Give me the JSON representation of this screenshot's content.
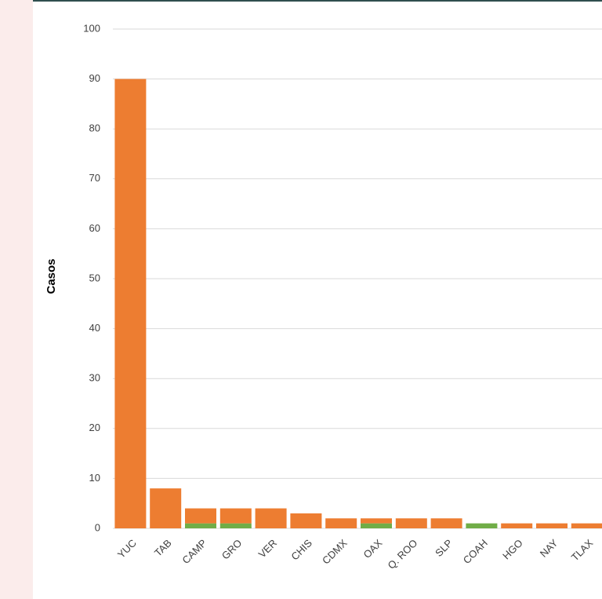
{
  "chart_data": {
    "type": "stacked_bar",
    "y_label": "Casos",
    "categories": [
      "YUC",
      "TAB",
      "CAMP",
      "GRO",
      "VER",
      "CHIS",
      "CDMX",
      "OAX",
      "Q. ROO",
      "SLP",
      "COAH",
      "HGO",
      "NAY",
      "TLAX"
    ],
    "series": [
      {
        "color": "#70ad47",
        "values": [
          0,
          0,
          1,
          1,
          0,
          0,
          0,
          1,
          0,
          0,
          1,
          0,
          0,
          0
        ]
      },
      {
        "color": "#ed7d31",
        "values": [
          90,
          8,
          3,
          3,
          4,
          3,
          2,
          1,
          2,
          2,
          0,
          1,
          1,
          1
        ]
      }
    ],
    "ylim": [
      0,
      100
    ],
    "yticks": [
      0,
      10,
      20,
      30,
      40,
      50,
      60,
      70,
      80,
      90,
      100
    ],
    "grid": true
  }
}
